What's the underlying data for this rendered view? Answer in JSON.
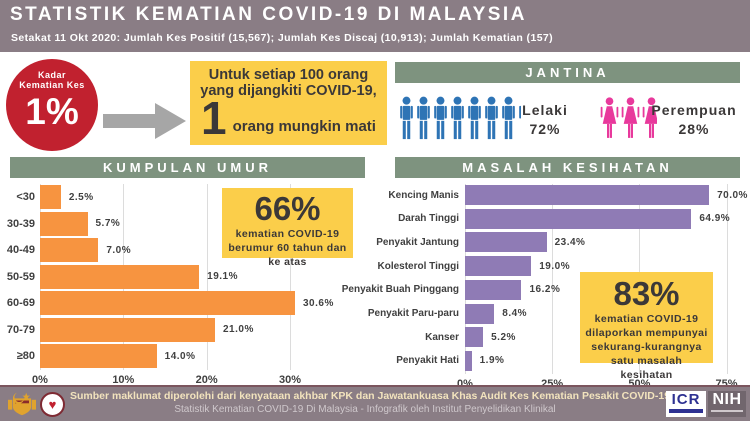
{
  "header": {
    "title": "STATISTIK KEMATIAN COVID-19 DI MALAYSIA",
    "subtitle": "Setakat 11 Okt 2020: Jumlah Kes Positif (15,567); Jumlah Kes Discaj (10,913); Jumlah Kematian (157)"
  },
  "fatality": {
    "circle_label_line1": "Kadar",
    "circle_label_line2": "Kematian Kes",
    "circle_value": "1%",
    "note_line1": "Untuk setiap 100 orang",
    "note_line2": "yang dijangkiti COVID-19,",
    "note_big": "1",
    "note_tail": "orang mungkin mati"
  },
  "jantina": {
    "title": "JANTINA",
    "male_label": "Lelaki",
    "male_value": "72%",
    "female_label": "Perempuan",
    "female_value": "28%"
  },
  "age_section": {
    "highlight_value": "66%",
    "highlight_text": "kematian COVID-19 berumur 60 tahun dan ke atas"
  },
  "health_section": {
    "highlight_value": "83%",
    "highlight_text": "kematian COVID-19 dilaporkan mempunyai sekurang-kurangnya satu masalah kesihatan"
  },
  "chart_data": [
    {
      "type": "bar",
      "orientation": "horizontal",
      "title": "KUMPULAN UMUR",
      "categories": [
        "<30",
        "30-39",
        "40-49",
        "50-59",
        "60-69",
        "70-79",
        "≥80"
      ],
      "values": [
        2.5,
        5.7,
        7.0,
        19.1,
        30.6,
        21.0,
        14.0
      ],
      "value_labels": [
        "2.5%",
        "5.7%",
        "7.0%",
        "19.1%",
        "30.6%",
        "21.0%",
        "14.0%"
      ],
      "x_ticks": [
        "0%",
        "10%",
        "20%",
        "30%"
      ],
      "x_tick_values": [
        0,
        10,
        20,
        30
      ],
      "xlim": [
        0,
        39
      ],
      "grid": true,
      "bar_color_key": "bar-orange"
    },
    {
      "type": "bar",
      "orientation": "horizontal",
      "title": "MASALAH KESIHATAN",
      "categories": [
        "Kencing Manis",
        "Darah Tinggi",
        "Penyakit Jantung",
        "Kolesterol Tinggi",
        "Penyakit Buah Pinggang",
        "Penyakit Paru-paru",
        "Kanser",
        "Penyakit Hati"
      ],
      "values": [
        70.0,
        64.9,
        23.4,
        19.0,
        16.2,
        8.4,
        5.2,
        1.9
      ],
      "value_labels": [
        "70.0%",
        "64.9%",
        "23.4%",
        "19.0%",
        "16.2%",
        "8.4%",
        "5.2%",
        "1.9%"
      ],
      "x_ticks": [
        "0%",
        "25%",
        "50%",
        "75%"
      ],
      "x_tick_values": [
        0,
        25,
        50,
        75
      ],
      "xlim": [
        0,
        78
      ],
      "grid": true,
      "bar_color_key": "bar-purple"
    }
  ],
  "footer": {
    "line1": "Sumber maklumat diperolehi dari kenyataan akhbar KPK dan Jawatankuasa Khas Audit Kes Kematian Pesakit COVID-19",
    "line2": "Statistik Kematian COVID-19 Di Malaysia -  Infografik oleh Institut Penyelidikan Klinikal",
    "logo_icr": "ICR",
    "logo_nih": "NIH",
    "heart_glyph": "♥"
  },
  "colors": {
    "header_bg": "#8A7D85",
    "section_bg": "#7E937F",
    "accent_red": "#C1212F",
    "highlight_yellow": "#FBCE4A",
    "bar_orange": "#F79440",
    "bar_purple": "#8F7BB5",
    "male_blue": "#2E74B5",
    "female_pink": "#E8399C",
    "arrow_gray": "#A6A6A6",
    "text_dark": "#3B3838",
    "grid_gray": "#DCDCDC",
    "footer_border": "#7B555E",
    "footer_text_cream": "#F2E3BD",
    "footer_text_light": "#CFC8CC",
    "icr_blue": "#2E3192"
  }
}
